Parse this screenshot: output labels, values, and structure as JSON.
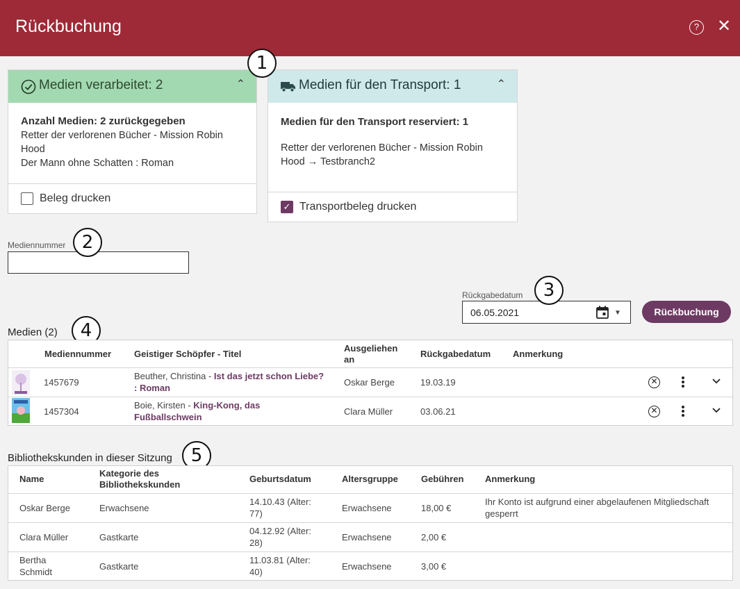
{
  "header": {
    "title": "Rückbuchung",
    "help_glyph": "?",
    "close_glyph": "✕"
  },
  "callouts": [
    "1",
    "2",
    "3",
    "4",
    "5"
  ],
  "processed_panel": {
    "title": "Medien verarbeitet: 2",
    "summary": "Anzahl Medien: 2 zurückgegeben",
    "items": [
      "Retter der verlorenen Bücher - Mission Robin Hood",
      "Der Mann ohne Schatten : Roman"
    ],
    "checkbox_label": "Beleg drucken",
    "checked": false,
    "header_color": "#a3d9b1"
  },
  "transport_panel": {
    "title": "Medien für den Transport: 1",
    "summary": "Medien für den Transport reserviert: 1",
    "item": "Retter der verlorenen Bücher - Mission Robin Hood → Testbranch2",
    "checkbox_label": "Transportbeleg drucken",
    "checked": true,
    "header_color": "#cfe8ea"
  },
  "media_number": {
    "label": "Mediennummer",
    "value": ""
  },
  "return_date": {
    "label": "Rückgabedatum",
    "value": "06.05.2021"
  },
  "submit_label": "Rückbuchung",
  "media_table": {
    "title": "Medien (2)",
    "headers": [
      "Mediennummer",
      "Geistiger Schöpfer - Titel",
      "Ausgeliehen an",
      "Rückgabedatum",
      "Anmerkung"
    ],
    "rows": [
      {
        "number": "1457679",
        "author": "Beuther, Christina - ",
        "title": "Ist das jetzt schon Liebe? : Roman",
        "borrower": "Oskar Berge",
        "date": "19.03.19",
        "note": ""
      },
      {
        "number": "1457304",
        "author": "Boie, Kirsten - ",
        "title": "King-Kong, das Fußballschwein",
        "borrower": "Clara Müller",
        "date": "03.06.21",
        "note": ""
      }
    ]
  },
  "customers_table": {
    "title": "Bibliothekskunden in dieser Sitzung",
    "headers": [
      "Name",
      "Kategorie des Bibliothekskunden",
      "Geburtsdatum",
      "Altersgruppe",
      "Gebühren",
      "Anmerkung"
    ],
    "rows": [
      {
        "name": "Oskar Berge",
        "category": "Erwachsene",
        "birth": "14.10.43 (Alter: 77)",
        "group": "Erwachsene",
        "fees": "18,00 €",
        "note": "Ihr Konto ist aufgrund einer abgelaufenen Mitgliedschaft gesperrt"
      },
      {
        "name": "Clara Müller",
        "category": "Gastkarte",
        "birth": "04.12.92 (Alter: 28)",
        "group": "Erwachsene",
        "fees": "2,00 €",
        "note": ""
      },
      {
        "name": "Bertha Schmidt",
        "category": "Gastkarte",
        "birth": "11.03.81 (Alter: 40)",
        "group": "Erwachsene",
        "fees": "3,00 €",
        "note": ""
      }
    ]
  }
}
